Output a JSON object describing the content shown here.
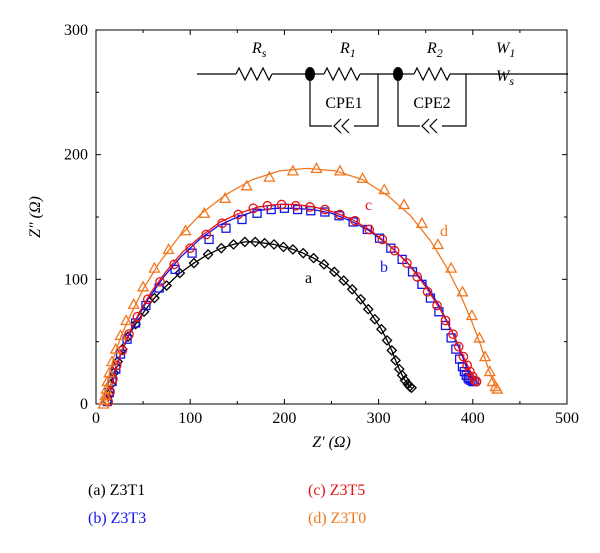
{
  "chart_data": {
    "type": "scatter",
    "xlabel": "Z′ (Ω)",
    "ylabel": "Z″ (Ω)",
    "xlim": [
      0,
      500
    ],
    "ylim": [
      0,
      300
    ],
    "xticks": [
      "0",
      "100",
      "200",
      "300",
      "400",
      "500"
    ],
    "yticks": [
      "0",
      "100",
      "200",
      "300"
    ],
    "series": [
      {
        "name": "(a) Z3T1",
        "curve_label": "a",
        "color": "#000000",
        "marker": "diamond",
        "x": [
          12,
          14,
          16,
          19,
          23,
          28,
          34,
          42,
          51,
          62,
          75,
          89,
          104,
          119,
          133,
          146,
          158,
          169,
          179,
          189,
          199,
          209,
          220,
          231,
          242,
          253,
          263,
          272,
          281,
          289,
          296,
          303,
          309,
          314,
          318,
          322,
          325,
          328,
          331,
          333,
          335
        ],
        "y": [
          2,
          8,
          16,
          25,
          34,
          44,
          54,
          64,
          74,
          85,
          95,
          105,
          113,
          120,
          125,
          128,
          130,
          130,
          129,
          128,
          126,
          124,
          121,
          117,
          112,
          106,
          99,
          92,
          84,
          76,
          68,
          60,
          51,
          43,
          35,
          28,
          23,
          19,
          16,
          14,
          13
        ]
      },
      {
        "name": "(b) Z3T3",
        "curve_label": "b",
        "color": "#1414e6",
        "marker": "square",
        "x": [
          12,
          14,
          17,
          21,
          26,
          33,
          42,
          53,
          67,
          84,
          102,
          120,
          138,
          155,
          171,
          186,
          200,
          214,
          228,
          243,
          258,
          273,
          288,
          301,
          313,
          325,
          336,
          346,
          355,
          364,
          371,
          377,
          382,
          386,
          389,
          391,
          393,
          395,
          396,
          398,
          400,
          402
        ],
        "y": [
          2,
          9,
          18,
          28,
          40,
          52,
          65,
          79,
          93,
          108,
          121,
          132,
          141,
          148,
          153,
          156,
          157,
          156,
          155,
          154,
          151,
          146,
          140,
          133,
          125,
          116,
          106,
          96,
          85,
          74,
          63,
          53,
          44,
          36,
          30,
          26,
          23,
          21,
          20,
          19,
          18,
          18
        ],
        "fit_x": [
          13,
          16,
          20,
          25,
          33,
          43,
          56,
          72,
          90,
          110,
          130,
          150,
          170,
          190,
          210,
          230,
          250,
          270,
          290,
          310,
          330,
          350,
          365,
          378,
          388,
          394,
          398,
          401
        ],
        "fit_y": [
          2,
          12,
          24,
          37,
          52,
          68,
          85,
          102,
          118,
          132,
          143,
          150,
          155,
          157,
          157,
          156,
          153,
          147,
          139,
          128,
          114,
          96,
          78,
          58,
          40,
          28,
          22,
          19
        ]
      },
      {
        "name": "(c) Z3T5",
        "curve_label": "c",
        "color": "#e61414",
        "marker": "circle",
        "x": [
          13,
          15,
          18,
          22,
          28,
          35,
          44,
          55,
          68,
          83,
          100,
          117,
          134,
          151,
          167,
          182,
          197,
          212,
          227,
          243,
          259,
          275,
          290,
          304,
          317,
          330,
          341,
          352,
          362,
          371,
          379,
          385,
          390,
          394,
          397,
          400,
          402,
          404
        ],
        "y": [
          2,
          10,
          20,
          31,
          43,
          56,
          70,
          84,
          98,
          112,
          125,
          136,
          145,
          152,
          157,
          159,
          160,
          159,
          158,
          156,
          152,
          147,
          140,
          132,
          123,
          113,
          102,
          90,
          79,
          67,
          56,
          46,
          38,
          31,
          26,
          22,
          19,
          18
        ],
        "fit_x": [
          13,
          16,
          20,
          26,
          34,
          45,
          58,
          74,
          92,
          112,
          132,
          152,
          172,
          192,
          212,
          232,
          252,
          272,
          292,
          312,
          332,
          350,
          366,
          380,
          390,
          397,
          401,
          404
        ],
        "fit_y": [
          2,
          13,
          26,
          40,
          55,
          72,
          89,
          106,
          122,
          135,
          146,
          153,
          158,
          160,
          160,
          158,
          154,
          148,
          139,
          127,
          112,
          94,
          75,
          55,
          38,
          27,
          21,
          18
        ]
      },
      {
        "name": "(d) Z3T0",
        "curve_label": "d",
        "color": "#f07820",
        "marker": "triangle",
        "x": [
          8,
          9,
          10,
          11,
          12,
          14,
          17,
          21,
          26,
          32,
          40,
          50,
          62,
          77,
          95,
          115,
          137,
          160,
          184,
          209,
          234,
          259,
          283,
          306,
          327,
          346,
          363,
          377,
          389,
          399,
          407,
          413,
          418,
          421,
          424,
          426
        ],
        "y": [
          0,
          3,
          7,
          12,
          18,
          25,
          34,
          44,
          55,
          67,
          80,
          94,
          109,
          124,
          139,
          153,
          165,
          175,
          182,
          187,
          189,
          187,
          181,
          172,
          160,
          145,
          128,
          109,
          90,
          71,
          53,
          38,
          26,
          18,
          14,
          12
        ],
        "fit_x": [
          8,
          10,
          12,
          15,
          20,
          27,
          37,
          50,
          67,
          88,
          112,
          138,
          166,
          195,
          224,
          254,
          283,
          310,
          334,
          355,
          372,
          386,
          398,
          408,
          415,
          420,
          424,
          426
        ],
        "fit_y": [
          0,
          7,
          16,
          27,
          40,
          55,
          72,
          92,
          113,
          134,
          153,
          168,
          180,
          187,
          189,
          187,
          180,
          167,
          151,
          131,
          110,
          89,
          68,
          48,
          32,
          21,
          15,
          12
        ]
      }
    ]
  },
  "circuit": {
    "labels": {
      "rs": "Rs",
      "r1": "R1",
      "r2": "R2",
      "w1": "W1",
      "ws": "Ws",
      "cpe1": "CPE1",
      "cpe2": "CPE2"
    }
  }
}
